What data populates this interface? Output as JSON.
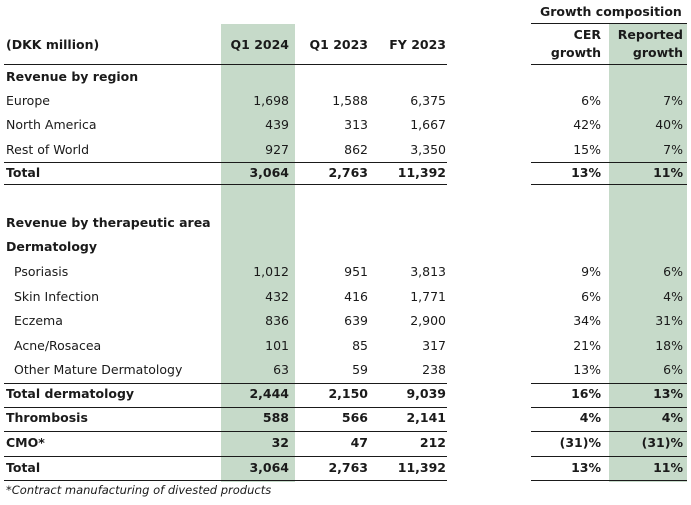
{
  "header": {
    "unit": "(DKK million)",
    "col_q1_2024": "Q1 2024",
    "col_q1_2023": "Q1 2023",
    "col_fy_2023": "FY 2023",
    "growth_composition": "Growth composition",
    "cer_line1": "CER",
    "cer_line2": "growth",
    "rep_line1": "Reported",
    "rep_line2": "growth"
  },
  "section_region": "Revenue by region",
  "region_rows": [
    {
      "label": "Europe",
      "q1_2024": "1,698",
      "q1_2023": "1,588",
      "fy_2023": "6,375",
      "cer": "6%",
      "reported": "7%"
    },
    {
      "label": "North America",
      "q1_2024": "439",
      "q1_2023": "313",
      "fy_2023": "1,667",
      "cer": "42%",
      "reported": "40%"
    },
    {
      "label": "Rest of World",
      "q1_2024": "927",
      "q1_2023": "862",
      "fy_2023": "3,350",
      "cer": "15%",
      "reported": "7%"
    }
  ],
  "region_total": {
    "label": "Total",
    "q1_2024": "3,064",
    "q1_2023": "2,763",
    "fy_2023": "11,392",
    "cer": "13%",
    "reported": "11%"
  },
  "section_therapeutic": "Revenue by therapeutic area",
  "subsection_dermatology": "Dermatology",
  "derm_rows": [
    {
      "label": "Psoriasis",
      "q1_2024": "1,012",
      "q1_2023": "951",
      "fy_2023": "3,813",
      "cer": "9%",
      "reported": "6%"
    },
    {
      "label": "Skin Infection",
      "q1_2024": "432",
      "q1_2023": "416",
      "fy_2023": "1,771",
      "cer": "6%",
      "reported": "4%"
    },
    {
      "label": "Eczema",
      "q1_2024": "836",
      "q1_2023": "639",
      "fy_2023": "2,900",
      "cer": "34%",
      "reported": "31%"
    },
    {
      "label": "Acne/Rosacea",
      "q1_2024": "101",
      "q1_2023": "85",
      "fy_2023": "317",
      "cer": "21%",
      "reported": "18%"
    },
    {
      "label": "Other Mature Dermatology",
      "q1_2024": "63",
      "q1_2023": "59",
      "fy_2023": "238",
      "cer": "13%",
      "reported": "6%"
    }
  ],
  "bottom_rows": [
    {
      "label": "Total dermatology",
      "q1_2024": "2,444",
      "q1_2023": "2,150",
      "fy_2023": "9,039",
      "cer": "16%",
      "reported": "13%"
    },
    {
      "label": "Thrombosis",
      "q1_2024": "588",
      "q1_2023": "566",
      "fy_2023": "2,141",
      "cer": "4%",
      "reported": "4%"
    },
    {
      "label": "CMO*",
      "q1_2024": "32",
      "q1_2023": "47",
      "fy_2023": "212",
      "cer": "(31)%",
      "reported": "(31)%"
    },
    {
      "label": "Total",
      "q1_2024": "3,064",
      "q1_2023": "2,763",
      "fy_2023": "11,392",
      "cer": "13%",
      "reported": "11%"
    }
  ],
  "footnote": "*Contract manufacturing of divested products",
  "colors": {
    "highlight": "#c6dac9",
    "rule": "#1a1a1a"
  }
}
